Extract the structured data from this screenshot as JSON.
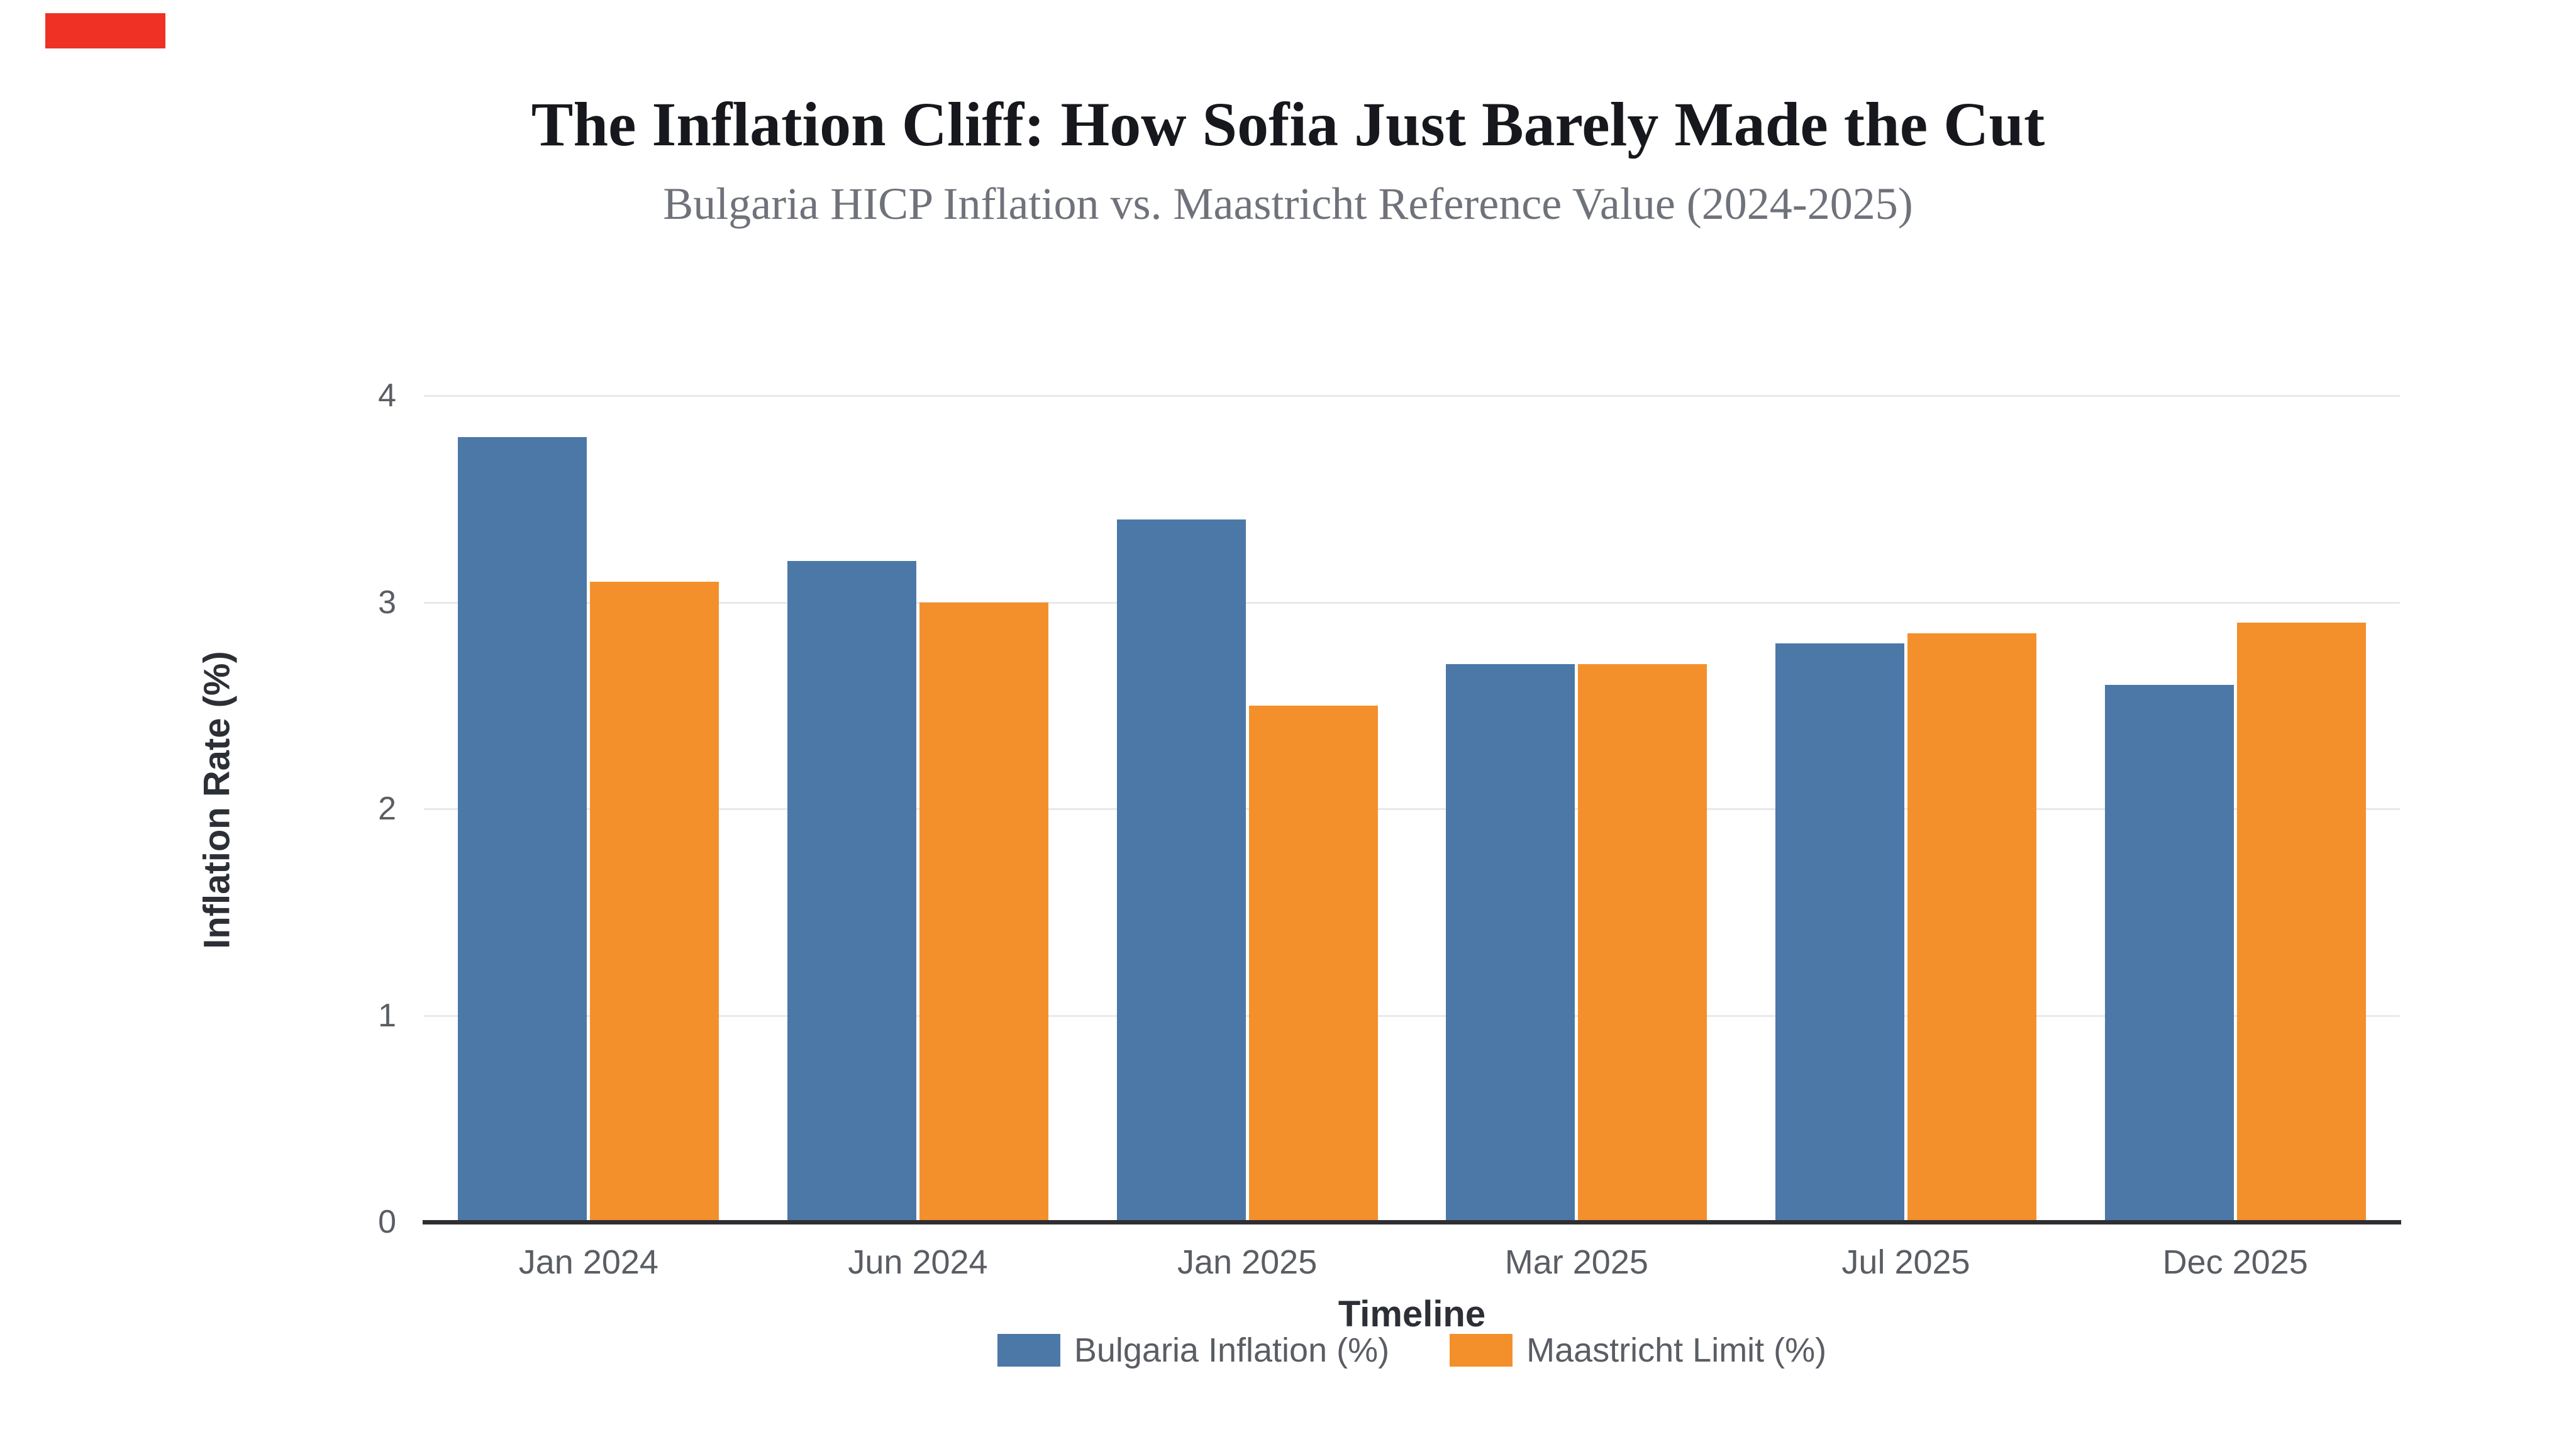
{
  "page": {
    "background_color": "#FFFFFF",
    "marker_color": "#EE3124"
  },
  "chart_data": {
    "type": "bar",
    "title": "The Inflation Cliff: How Sofia Just Barely Made the Cut",
    "subtitle": "Bulgaria HICP Inflation vs. Maastricht Reference Value (2024-2025)",
    "xlabel": "Timeline",
    "ylabel": "Inflation Rate (%)",
    "categories": [
      "Jan 2024",
      "Jun 2024",
      "Jan 2025",
      "Mar 2025",
      "Jul 2025",
      "Dec 2025"
    ],
    "series": [
      {
        "name": "Bulgaria Inflation (%)",
        "color": "#4C78A8",
        "values": [
          3.8,
          3.2,
          3.4,
          2.7,
          2.8,
          2.6
        ]
      },
      {
        "name": "Maastricht Limit (%)",
        "color": "#F3902C",
        "values": [
          3.1,
          3.0,
          2.5,
          2.7,
          2.85,
          2.9
        ]
      }
    ],
    "ylim": [
      0,
      4
    ],
    "yticks": [
      0,
      1,
      2,
      3,
      4
    ],
    "grid": true,
    "gridline_color": "#E9E9EC",
    "axis_line_color": "#2E2E33",
    "legend_position": "bottom"
  }
}
